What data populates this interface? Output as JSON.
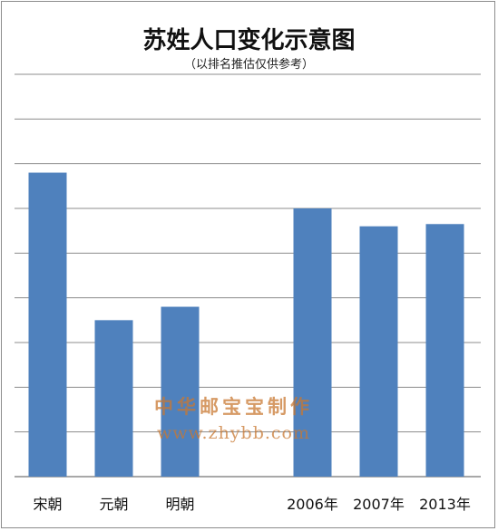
{
  "chart_data": {
    "type": "bar",
    "title": "苏姓人口变化示意图",
    "subtitle": "（以排名推估仅供参考）",
    "categories": [
      "宋朝",
      "元朝",
      "明朝",
      "",
      "2006年",
      "2007年",
      "2013年"
    ],
    "values": [
      6.8,
      3.5,
      3.8,
      null,
      6.0,
      5.6,
      5.65
    ],
    "ylim": [
      0,
      9
    ],
    "gridlines": 9,
    "grid": true,
    "show_y_tick_labels": false,
    "bar_color": "#4f81bd",
    "grid_color": "#8c8c8c"
  },
  "watermark": {
    "line1": "中华邮宝宝制作",
    "line2": "www.zhybb.com",
    "color": "#c87832"
  }
}
